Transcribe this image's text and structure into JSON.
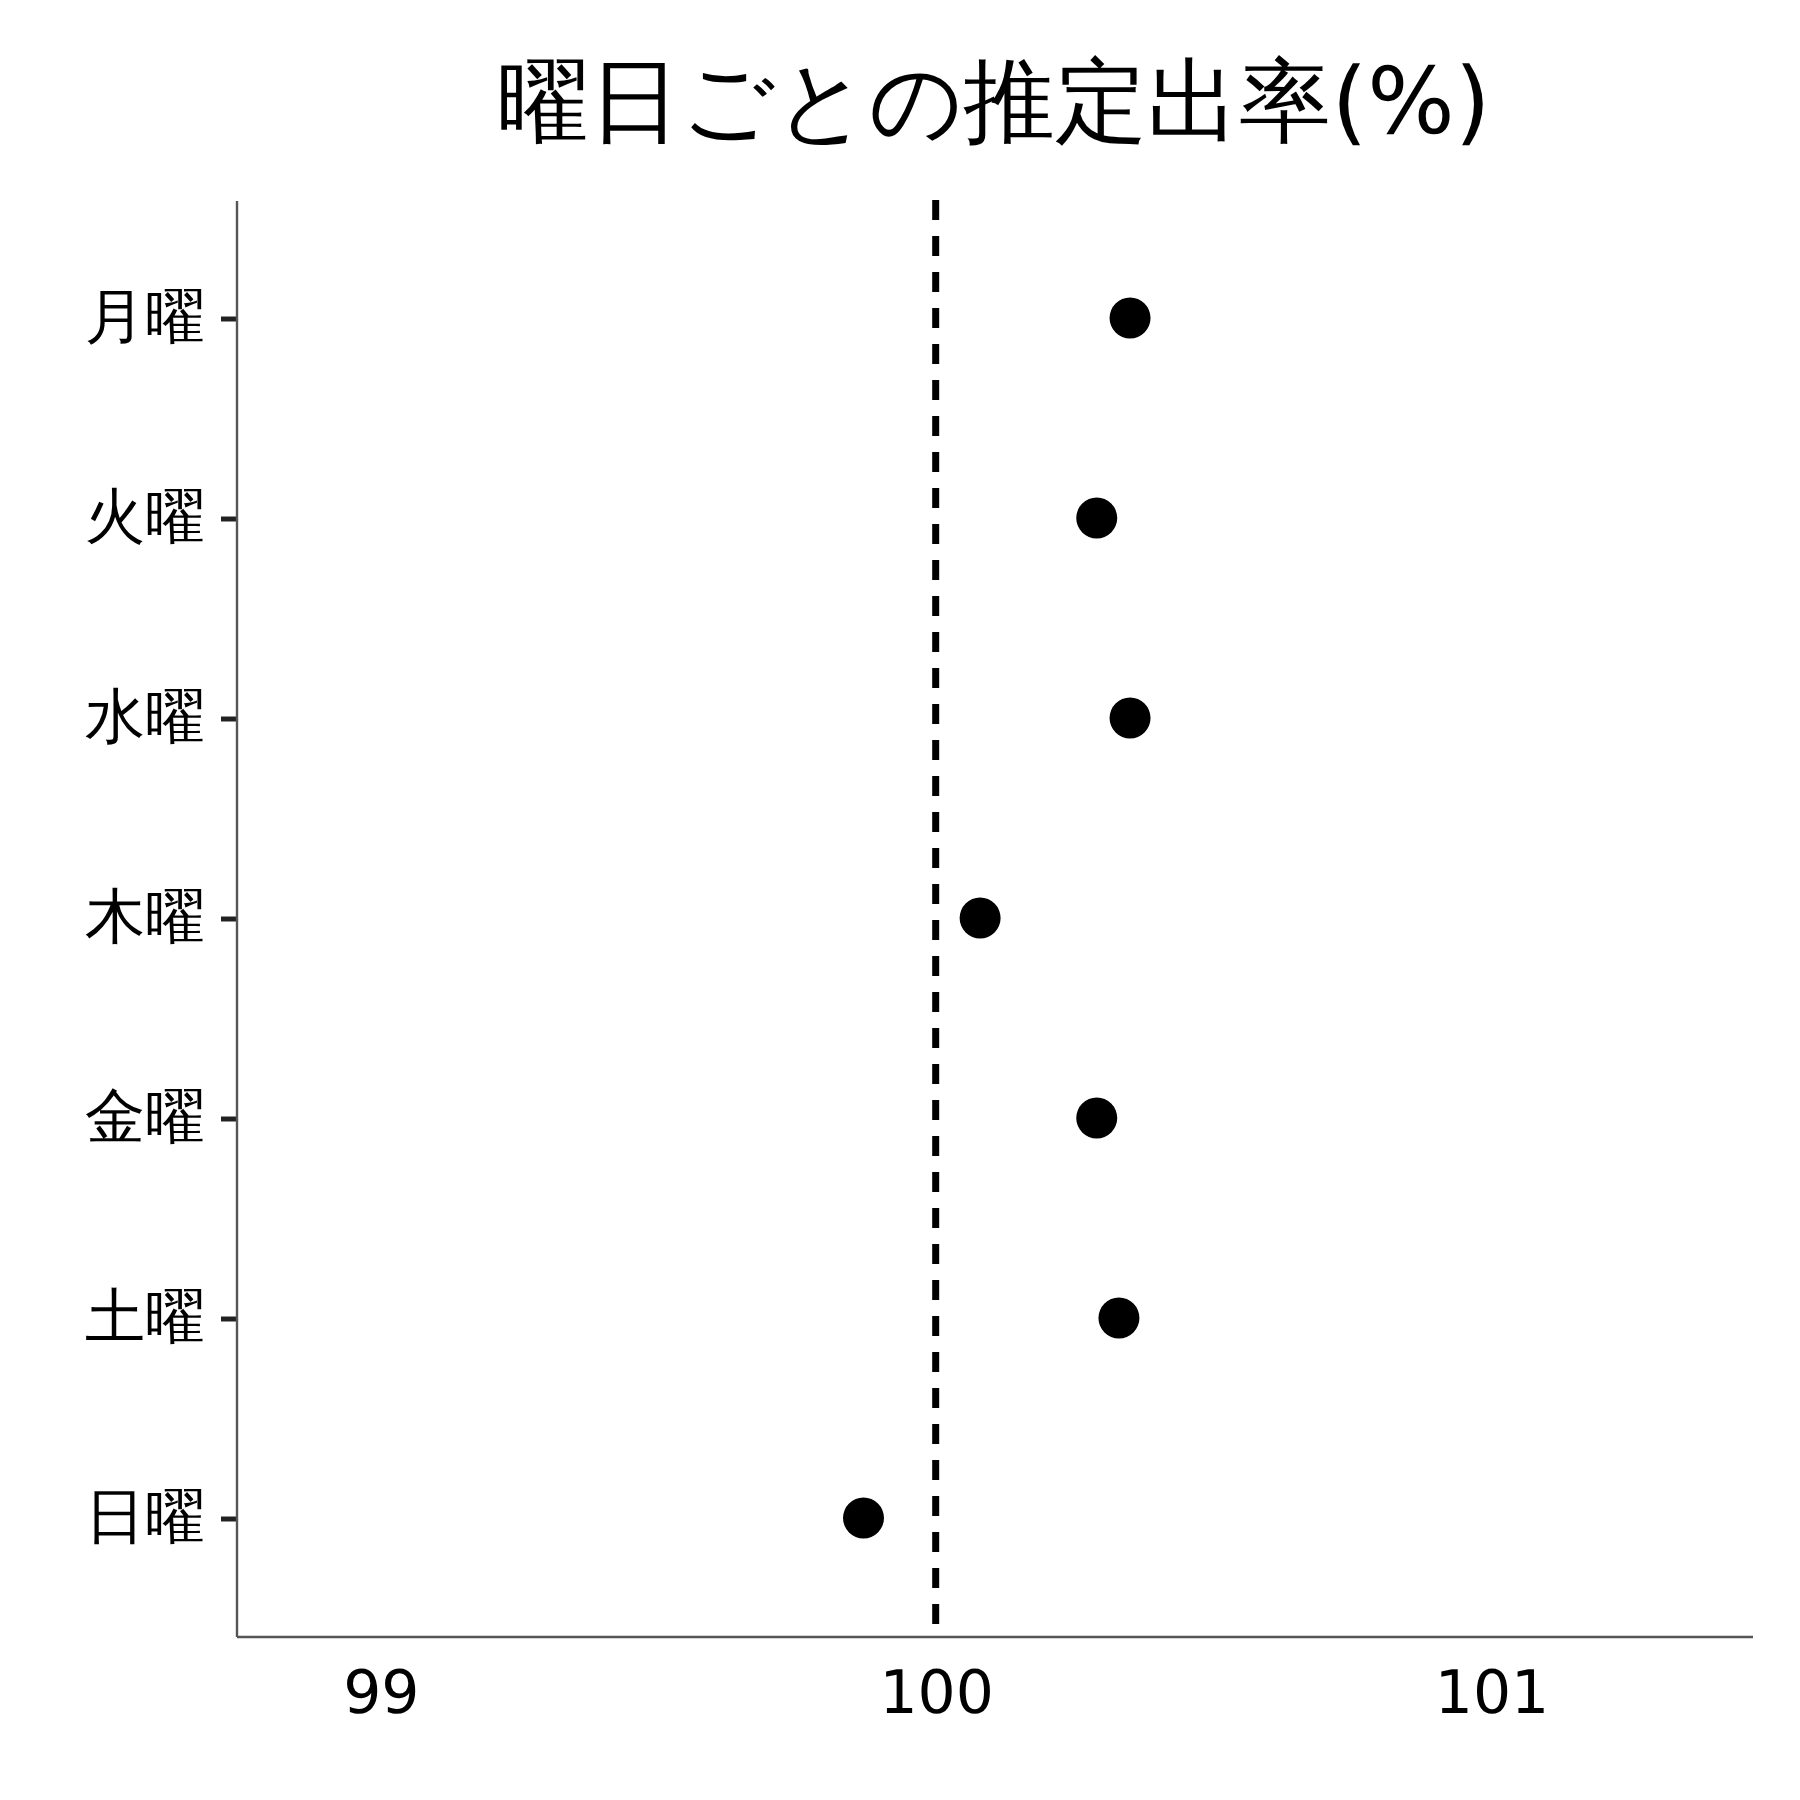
{
  "chart_data": {
    "type": "scatter",
    "title": "曜日ごとの推定出率(%)",
    "orientation": "horizontal",
    "categories": [
      "月曜",
      "火曜",
      "水曜",
      "木曜",
      "金曜",
      "土曜",
      "日曜"
    ],
    "values": [
      100.35,
      100.29,
      100.35,
      100.08,
      100.29,
      100.33,
      99.87
    ],
    "color": "#000000",
    "marker": "circle",
    "grid": false,
    "xlim": [
      98.74,
      101.47
    ],
    "xticks": [
      99,
      100,
      101
    ],
    "ref_lines": [
      {
        "axis": "x",
        "value": 100,
        "color": "#000000",
        "line_style": "dashed"
      }
    ]
  }
}
